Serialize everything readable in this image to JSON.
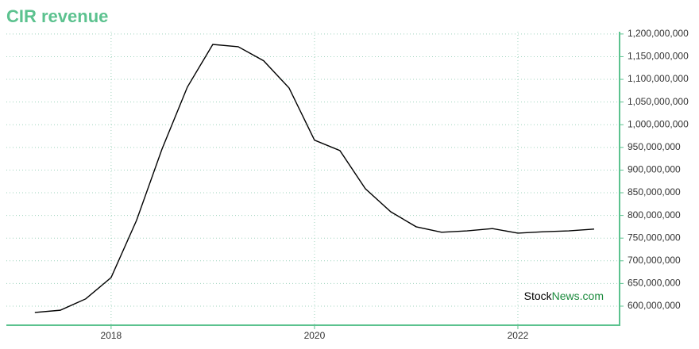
{
  "chart_data": {
    "type": "line",
    "title": "CIR revenue",
    "x": [
      2017.25,
      2017.5,
      2017.75,
      2018.0,
      2018.25,
      2018.5,
      2018.75,
      2019.0,
      2019.25,
      2019.5,
      2019.75,
      2020.0,
      2020.25,
      2020.5,
      2020.75,
      2021.0,
      2021.25,
      2021.5,
      2021.75,
      2022.0,
      2022.25,
      2022.5,
      2022.75
    ],
    "series": [
      {
        "name": "CIR revenue",
        "color": "#000000",
        "values": [
          586000000,
          591000000,
          616000000,
          663000000,
          789000000,
          946000000,
          1083000000,
          1177000000,
          1172000000,
          1141000000,
          1081000000,
          966000000,
          943000000,
          859000000,
          808000000,
          775000000,
          763000000,
          766000000,
          771000000,
          761000000,
          764000000,
          766000000,
          770000000
        ]
      }
    ],
    "xlim": [
      2016.97,
      2023.0
    ],
    "xticks": [
      2018,
      2020,
      2022
    ],
    "ylim": [
      558000000,
      1205000000
    ],
    "yticks": [
      {
        "value": 600000000,
        "label": "600,000,000"
      },
      {
        "value": 650000000,
        "label": "650,000,000"
      },
      {
        "value": 700000000,
        "label": "700,000,000"
      },
      {
        "value": 750000000,
        "label": "750,000,000"
      },
      {
        "value": 800000000,
        "label": "800,000,000"
      },
      {
        "value": 850000000,
        "label": "850,000,000"
      },
      {
        "value": 900000000,
        "label": "900,000,000"
      },
      {
        "value": 950000000,
        "label": "950,000,000"
      },
      {
        "value": 1000000000,
        "label": "1,000,000,000"
      },
      {
        "value": 1050000000,
        "label": "1,050,000,000"
      },
      {
        "value": 1100000000,
        "label": "1,100,000,000"
      },
      {
        "value": 1150000000,
        "label": "1,150,000,000"
      },
      {
        "value": 1200000000,
        "label": "1,200,000,000"
      }
    ],
    "grid": true,
    "axis_color": "#5cc28f",
    "watermark": [
      "Stock",
      "News.com"
    ]
  }
}
